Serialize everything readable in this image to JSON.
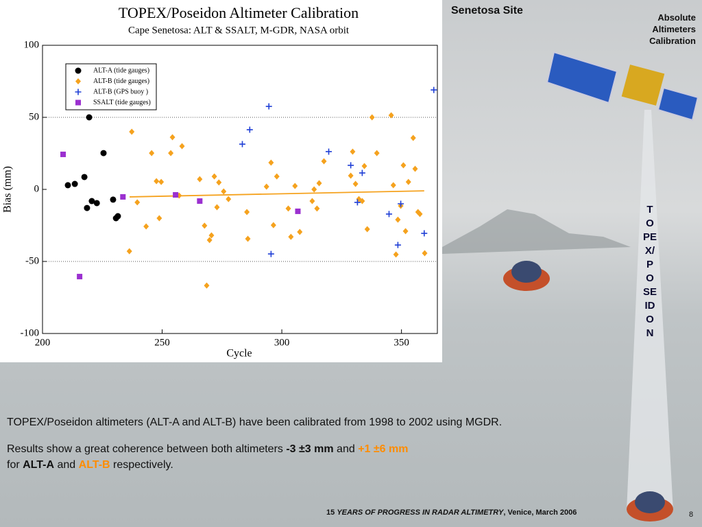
{
  "chart_data": {
    "type": "scatter",
    "title": "TOPEX/Poseidon Altimeter Calibration",
    "subtitle": "Cape Senetosa: ALT & SSALT, M-GDR, NASA orbit",
    "x_label": "Cycle",
    "y_label": "Bias (mm)",
    "xlim": [
      200,
      365
    ],
    "ylim": [
      -100,
      100
    ],
    "xticks": [
      200,
      250,
      300,
      350
    ],
    "yticks": [
      -100,
      -50,
      0,
      50,
      100
    ],
    "hlines": [
      50,
      -50
    ],
    "legend": "upper left",
    "series": [
      {
        "name": "ALT-A (tide gauges)",
        "color": "#000000",
        "marker": "circle",
        "x": [
          210.6,
          213.5,
          217.5,
          219.5,
          218.6,
          220.6,
          222.7,
          225.5,
          229.5,
          231.5,
          230.7
        ],
        "values": [
          2.9,
          3.8,
          8.6,
          50,
          -12.9,
          -8.1,
          -9.5,
          25.2,
          -7.1,
          -18.6,
          -20
        ]
      },
      {
        "name": "ALT-B (tide gauges)",
        "color": "#f5a21e",
        "marker": "diamond",
        "x": [
          237.3,
          236.3,
          239.6,
          243.3,
          245.6,
          247.6,
          249.6,
          248.8,
          253.6,
          254.3,
          257.1,
          258.3,
          265.7,
          267.7,
          268.6,
          269.8,
          270.6,
          271.8,
          272.9,
          273.7,
          275.7,
          277.7,
          285.4,
          285.8,
          293.6,
          295.5,
          297.9,
          296.5,
          302.7,
          303.8,
          305.5,
          307.5,
          312.7,
          313.5,
          314.7,
          315.6,
          317.6,
          328.8,
          329.6,
          330.8,
          332.2,
          333.6,
          334.5,
          335.7,
          337.7,
          339.7,
          345.7,
          346.6,
          347.7,
          348.5,
          349.7,
          350.8,
          351.7,
          352.9,
          354.9,
          355.7,
          356.9,
          357.7,
          359.7
        ],
        "values": [
          40,
          -42.9,
          -9,
          -25.7,
          25.2,
          5.7,
          5.2,
          -20,
          25.2,
          36.2,
          -4.3,
          30,
          7.1,
          -25.2,
          -66.7,
          -35.2,
          -31.9,
          9,
          -12.4,
          4.8,
          -1.4,
          -6.7,
          -15.7,
          -34.3,
          1.9,
          18.6,
          9,
          -24.8,
          -13.3,
          -32.9,
          2.4,
          -29.5,
          -8.1,
          0,
          -13.3,
          4.3,
          19.5,
          9.5,
          26.2,
          3.8,
          -6.7,
          -8.1,
          16.2,
          -27.6,
          50,
          25.2,
          51.4,
          2.9,
          -45.2,
          -21,
          -11.4,
          16.7,
          -29,
          5.2,
          35.7,
          14.3,
          -15.7,
          -17.1,
          -44.3
        ]
      },
      {
        "name": "ALT-B (GPS buoy )",
        "color": "#1f3fd6",
        "marker": "plus",
        "x": [
          294.6,
          286.6,
          283.5,
          319.6,
          328.8,
          333.6,
          331.6,
          344.8,
          349.7,
          348.5,
          295.5,
          359.5,
          363.5
        ],
        "values": [
          57.6,
          41.4,
          31.4,
          26.2,
          16.7,
          11.4,
          -9,
          -17.1,
          -10,
          -38.6,
          -44.8,
          -30.5,
          69
        ]
      },
      {
        "name": "SSALT (tide gauges)",
        "color": "#9b30d0",
        "marker": "square",
        "x": [
          208.6,
          215.5,
          233.6,
          255.6,
          265.7,
          306.7
        ],
        "values": [
          24.3,
          -60.5,
          -5.2,
          -3.8,
          -8.1,
          -15.2
        ]
      }
    ],
    "fit": {
      "color": "#f5a21e",
      "x": [
        236.4,
        359.5
      ],
      "values": [
        -5.2,
        -1
      ]
    }
  },
  "header": {
    "site": "Senetosa Site",
    "section": "Absolute Altimeters Calibration",
    "vertical_title": "TOPEX/POSEIDON"
  },
  "body": {
    "paragraph1": "TOPEX/Poseidon altimeters (ALT-A and ALT-B) have been calibrated from 1998 to 2002 using MGDR.",
    "paragraph2": [
      "Results show a great coherence between both altimeters",
      "-3 ±3 mm",
      "and",
      "+1 ±6 mm",
      "for",
      "ALT-A",
      "and",
      "ALT-B",
      "respectively."
    ]
  },
  "footer": {
    "parts": [
      "15",
      "YEARS OF PROGRESS IN RADAR ALTIMETRY",
      ", Venice, March 2006"
    ],
    "page": "8"
  }
}
